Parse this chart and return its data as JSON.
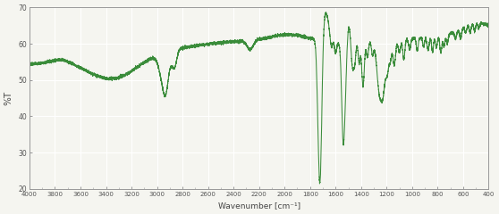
{
  "xlabel": "Wavenumber [cm-1]",
  "ylabel": "%T",
  "xlim": [
    4000,
    400
  ],
  "ylim": [
    20,
    70
  ],
  "yticks": [
    20,
    30,
    40,
    50,
    60,
    70
  ],
  "xticks": [
    4000,
    3800,
    3600,
    3400,
    3200,
    3000,
    2800,
    2600,
    2400,
    2200,
    2000,
    1800,
    1600,
    1400,
    1200,
    1000,
    800,
    600,
    400
  ],
  "line_color": "#3a8c3a",
  "bg_color": "#f5f5f0",
  "grid_color": "#ffffff",
  "spine_color": "#999999"
}
